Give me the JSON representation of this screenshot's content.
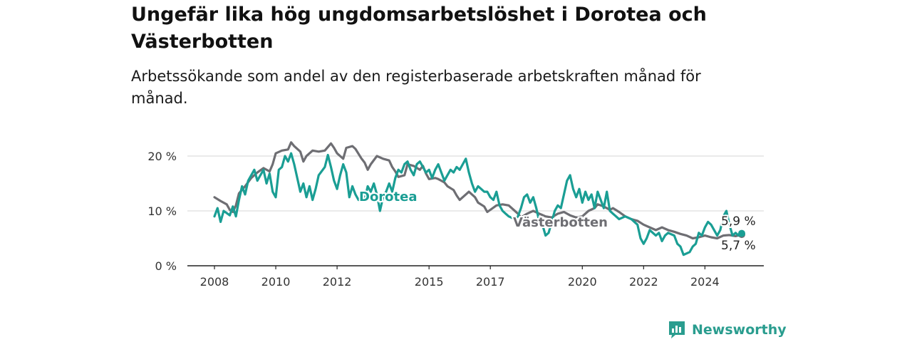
{
  "title": "Ungefär lika hög ungdomsarbetslöshet i Dorotea och Västerbotten",
  "subtitle": "Arbetssökande som andel av den registerbaserade arbetskraften månad för månad.",
  "brand": {
    "name": "Newsworthy",
    "color": "#2a9d8f",
    "icon": "newsworthy-logo-icon"
  },
  "chart_data": {
    "type": "line",
    "title": "",
    "xlabel": "",
    "ylabel": "",
    "xlim": [
      2008,
      2025.4
    ],
    "ylim": [
      0,
      20
    ],
    "grid": true,
    "y_ticks": [
      {
        "value": 0,
        "label": "0 %"
      },
      {
        "value": 10,
        "label": "10 %"
      },
      {
        "value": 20,
        "label": "20 %"
      }
    ],
    "x_ticks": [
      {
        "value": 2008,
        "label": "2008"
      },
      {
        "value": 2010,
        "label": "2010"
      },
      {
        "value": 2012,
        "label": "2012"
      },
      {
        "value": 2015,
        "label": "2015"
      },
      {
        "value": 2017,
        "label": "2017"
      },
      {
        "value": 2020,
        "label": "2020"
      },
      {
        "value": 2022,
        "label": "2022"
      },
      {
        "value": 2024,
        "label": "2024"
      }
    ],
    "series": [
      {
        "name": "Västerbotten",
        "color": "#6e6e73",
        "last_value_label": "5,7 %",
        "points": [
          [
            2008.0,
            12.5
          ],
          [
            2008.2,
            11.8
          ],
          [
            2008.4,
            11.2
          ],
          [
            2008.5,
            10.2
          ],
          [
            2008.6,
            9.8
          ],
          [
            2008.7,
            11.0
          ],
          [
            2008.8,
            13.2
          ],
          [
            2009.0,
            14.5
          ],
          [
            2009.2,
            16.0
          ],
          [
            2009.4,
            17.0
          ],
          [
            2009.6,
            17.8
          ],
          [
            2009.8,
            17.2
          ],
          [
            2009.9,
            18.5
          ],
          [
            2010.0,
            20.5
          ],
          [
            2010.2,
            21.0
          ],
          [
            2010.4,
            21.2
          ],
          [
            2010.5,
            22.5
          ],
          [
            2010.6,
            21.8
          ],
          [
            2010.8,
            20.8
          ],
          [
            2010.9,
            19.0
          ],
          [
            2011.0,
            20.0
          ],
          [
            2011.2,
            21.0
          ],
          [
            2011.4,
            20.8
          ],
          [
            2011.6,
            21.0
          ],
          [
            2011.8,
            22.3
          ],
          [
            2011.9,
            21.5
          ],
          [
            2012.0,
            20.5
          ],
          [
            2012.2,
            19.5
          ],
          [
            2012.3,
            21.5
          ],
          [
            2012.5,
            21.8
          ],
          [
            2012.6,
            21.3
          ],
          [
            2012.8,
            19.5
          ],
          [
            2012.9,
            18.8
          ],
          [
            2013.0,
            17.5
          ],
          [
            2013.1,
            18.5
          ],
          [
            2013.3,
            20.0
          ],
          [
            2013.5,
            19.5
          ],
          [
            2013.7,
            19.2
          ],
          [
            2013.8,
            18.0
          ],
          [
            2013.9,
            17.2
          ],
          [
            2014.0,
            16.2
          ],
          [
            2014.2,
            16.5
          ],
          [
            2014.3,
            18.5
          ],
          [
            2014.5,
            18.2
          ],
          [
            2014.7,
            17.5
          ],
          [
            2014.8,
            18.2
          ],
          [
            2014.9,
            16.8
          ],
          [
            2015.0,
            15.8
          ],
          [
            2015.2,
            16.0
          ],
          [
            2015.3,
            15.8
          ],
          [
            2015.5,
            15.2
          ],
          [
            2015.6,
            14.5
          ],
          [
            2015.8,
            13.8
          ],
          [
            2015.9,
            12.8
          ],
          [
            2016.0,
            12.0
          ],
          [
            2016.2,
            13.0
          ],
          [
            2016.3,
            13.5
          ],
          [
            2016.5,
            12.5
          ],
          [
            2016.6,
            11.5
          ],
          [
            2016.8,
            10.8
          ],
          [
            2016.9,
            9.8
          ],
          [
            2017.0,
            10.2
          ],
          [
            2017.2,
            11.0
          ],
          [
            2017.4,
            11.2
          ],
          [
            2017.6,
            11.0
          ],
          [
            2017.8,
            10.0
          ],
          [
            2017.9,
            9.5
          ],
          [
            2018.0,
            8.8
          ],
          [
            2018.2,
            9.5
          ],
          [
            2018.4,
            10.0
          ],
          [
            2018.6,
            9.5
          ],
          [
            2018.8,
            9.0
          ],
          [
            2019.0,
            8.8
          ],
          [
            2019.2,
            9.5
          ],
          [
            2019.4,
            9.8
          ],
          [
            2019.6,
            9.2
          ],
          [
            2019.8,
            8.8
          ],
          [
            2020.0,
            9.0
          ],
          [
            2020.2,
            10.0
          ],
          [
            2020.4,
            10.5
          ],
          [
            2020.5,
            11.2
          ],
          [
            2020.7,
            10.8
          ],
          [
            2020.9,
            10.2
          ],
          [
            2021.0,
            10.5
          ],
          [
            2021.2,
            9.8
          ],
          [
            2021.4,
            9.0
          ],
          [
            2021.6,
            8.5
          ],
          [
            2021.8,
            8.2
          ],
          [
            2022.0,
            7.5
          ],
          [
            2022.2,
            7.0
          ],
          [
            2022.4,
            6.5
          ],
          [
            2022.6,
            7.0
          ],
          [
            2022.8,
            6.5
          ],
          [
            2023.0,
            6.2
          ],
          [
            2023.2,
            5.8
          ],
          [
            2023.4,
            5.5
          ],
          [
            2023.6,
            5.0
          ],
          [
            2023.8,
            5.2
          ],
          [
            2024.0,
            5.5
          ],
          [
            2024.2,
            5.2
          ],
          [
            2024.4,
            5.0
          ],
          [
            2024.6,
            5.5
          ],
          [
            2024.8,
            5.6
          ],
          [
            2025.0,
            5.4
          ],
          [
            2025.2,
            5.7
          ]
        ]
      },
      {
        "name": "Dorotea",
        "color": "#1a9e94",
        "last_value_label": "5,9 %",
        "points": [
          [
            2008.0,
            9.0
          ],
          [
            2008.1,
            10.5
          ],
          [
            2008.2,
            8.0
          ],
          [
            2008.3,
            10.0
          ],
          [
            2008.5,
            9.2
          ],
          [
            2008.6,
            10.8
          ],
          [
            2008.7,
            9.0
          ],
          [
            2008.8,
            12.0
          ],
          [
            2008.9,
            14.5
          ],
          [
            2009.0,
            13.0
          ],
          [
            2009.1,
            15.5
          ],
          [
            2009.3,
            17.5
          ],
          [
            2009.4,
            15.5
          ],
          [
            2009.5,
            16.5
          ],
          [
            2009.6,
            17.5
          ],
          [
            2009.7,
            15.0
          ],
          [
            2009.8,
            16.8
          ],
          [
            2009.9,
            13.5
          ],
          [
            2010.0,
            12.5
          ],
          [
            2010.1,
            17.5
          ],
          [
            2010.2,
            18.0
          ],
          [
            2010.3,
            20.0
          ],
          [
            2010.4,
            19.0
          ],
          [
            2010.5,
            20.5
          ],
          [
            2010.6,
            18.5
          ],
          [
            2010.7,
            16.0
          ],
          [
            2010.8,
            13.5
          ],
          [
            2010.9,
            15.0
          ],
          [
            2011.0,
            12.5
          ],
          [
            2011.1,
            14.5
          ],
          [
            2011.2,
            12.0
          ],
          [
            2011.3,
            14.0
          ],
          [
            2011.4,
            16.5
          ],
          [
            2011.6,
            18.0
          ],
          [
            2011.7,
            20.2
          ],
          [
            2011.8,
            18.0
          ],
          [
            2011.9,
            15.5
          ],
          [
            2012.0,
            14.0
          ],
          [
            2012.1,
            16.5
          ],
          [
            2012.2,
            18.5
          ],
          [
            2012.3,
            17.0
          ],
          [
            2012.4,
            12.5
          ],
          [
            2012.5,
            14.5
          ],
          [
            2012.6,
            13.0
          ],
          [
            2012.7,
            12.0
          ],
          [
            2012.8,
            12.5
          ],
          [
            2012.9,
            12.0
          ],
          [
            2013.0,
            14.5
          ],
          [
            2013.1,
            13.5
          ],
          [
            2013.2,
            15.0
          ],
          [
            2013.3,
            13.0
          ],
          [
            2013.4,
            10.0
          ],
          [
            2013.5,
            12.5
          ],
          [
            2013.6,
            13.5
          ],
          [
            2013.7,
            15.0
          ],
          [
            2013.8,
            13.5
          ],
          [
            2013.9,
            16.0
          ],
          [
            2014.0,
            17.5
          ],
          [
            2014.1,
            17.0
          ],
          [
            2014.2,
            18.5
          ],
          [
            2014.3,
            19.0
          ],
          [
            2014.4,
            17.5
          ],
          [
            2014.5,
            16.5
          ],
          [
            2014.6,
            18.5
          ],
          [
            2014.7,
            19.0
          ],
          [
            2014.8,
            18.0
          ],
          [
            2014.9,
            17.0
          ],
          [
            2015.0,
            17.5
          ],
          [
            2015.1,
            16.0
          ],
          [
            2015.2,
            17.5
          ],
          [
            2015.3,
            18.5
          ],
          [
            2015.4,
            17.0
          ],
          [
            2015.5,
            15.5
          ],
          [
            2015.6,
            16.5
          ],
          [
            2015.7,
            17.5
          ],
          [
            2015.8,
            17.0
          ],
          [
            2015.9,
            18.0
          ],
          [
            2016.0,
            17.5
          ],
          [
            2016.1,
            18.5
          ],
          [
            2016.2,
            19.5
          ],
          [
            2016.3,
            17.0
          ],
          [
            2016.4,
            15.0
          ],
          [
            2016.5,
            13.5
          ],
          [
            2016.6,
            14.5
          ],
          [
            2016.7,
            14.0
          ],
          [
            2016.8,
            13.5
          ],
          [
            2016.9,
            13.5
          ],
          [
            2017.0,
            12.5
          ],
          [
            2017.1,
            12.0
          ],
          [
            2017.2,
            13.5
          ],
          [
            2017.3,
            11.0
          ],
          [
            2017.4,
            10.0
          ],
          [
            2017.5,
            9.5
          ],
          [
            2017.6,
            9.0
          ],
          [
            2017.8,
            8.5
          ],
          [
            2017.9,
            9.0
          ],
          [
            2018.0,
            10.5
          ],
          [
            2018.1,
            12.5
          ],
          [
            2018.2,
            13.0
          ],
          [
            2018.3,
            11.5
          ],
          [
            2018.4,
            12.5
          ],
          [
            2018.5,
            10.5
          ],
          [
            2018.6,
            8.0
          ],
          [
            2018.7,
            7.5
          ],
          [
            2018.8,
            5.5
          ],
          [
            2018.9,
            6.0
          ],
          [
            2019.0,
            8.0
          ],
          [
            2019.1,
            10.0
          ],
          [
            2019.2,
            11.0
          ],
          [
            2019.3,
            10.5
          ],
          [
            2019.4,
            13.0
          ],
          [
            2019.5,
            15.5
          ],
          [
            2019.6,
            16.5
          ],
          [
            2019.7,
            14.0
          ],
          [
            2019.8,
            12.5
          ],
          [
            2019.9,
            14.0
          ],
          [
            2020.0,
            11.5
          ],
          [
            2020.1,
            13.5
          ],
          [
            2020.2,
            12.0
          ],
          [
            2020.3,
            13.0
          ],
          [
            2020.4,
            10.5
          ],
          [
            2020.5,
            13.5
          ],
          [
            2020.6,
            12.0
          ],
          [
            2020.7,
            10.5
          ],
          [
            2020.8,
            13.5
          ],
          [
            2020.9,
            10.0
          ],
          [
            2021.0,
            9.5
          ],
          [
            2021.1,
            9.0
          ],
          [
            2021.2,
            8.5
          ],
          [
            2021.4,
            9.0
          ],
          [
            2021.6,
            8.5
          ],
          [
            2021.8,
            7.5
          ],
          [
            2021.9,
            5.0
          ],
          [
            2022.0,
            4.0
          ],
          [
            2022.1,
            5.0
          ],
          [
            2022.2,
            6.5
          ],
          [
            2022.4,
            5.5
          ],
          [
            2022.5,
            6.0
          ],
          [
            2022.6,
            4.5
          ],
          [
            2022.7,
            5.5
          ],
          [
            2022.8,
            6.0
          ],
          [
            2023.0,
            5.5
          ],
          [
            2023.1,
            4.0
          ],
          [
            2023.2,
            3.5
          ],
          [
            2023.3,
            2.0
          ],
          [
            2023.5,
            2.5
          ],
          [
            2023.6,
            3.5
          ],
          [
            2023.7,
            4.0
          ],
          [
            2023.8,
            6.0
          ],
          [
            2023.9,
            5.5
          ],
          [
            2024.0,
            7.0
          ],
          [
            2024.1,
            8.0
          ],
          [
            2024.2,
            7.5
          ],
          [
            2024.3,
            6.5
          ],
          [
            2024.4,
            5.5
          ],
          [
            2024.5,
            6.5
          ],
          [
            2024.6,
            9.0
          ],
          [
            2024.7,
            10.0
          ],
          [
            2024.8,
            7.5
          ],
          [
            2024.9,
            5.5
          ],
          [
            2025.0,
            6.0
          ],
          [
            2025.1,
            5.5
          ],
          [
            2025.2,
            5.9
          ]
        ]
      }
    ]
  }
}
